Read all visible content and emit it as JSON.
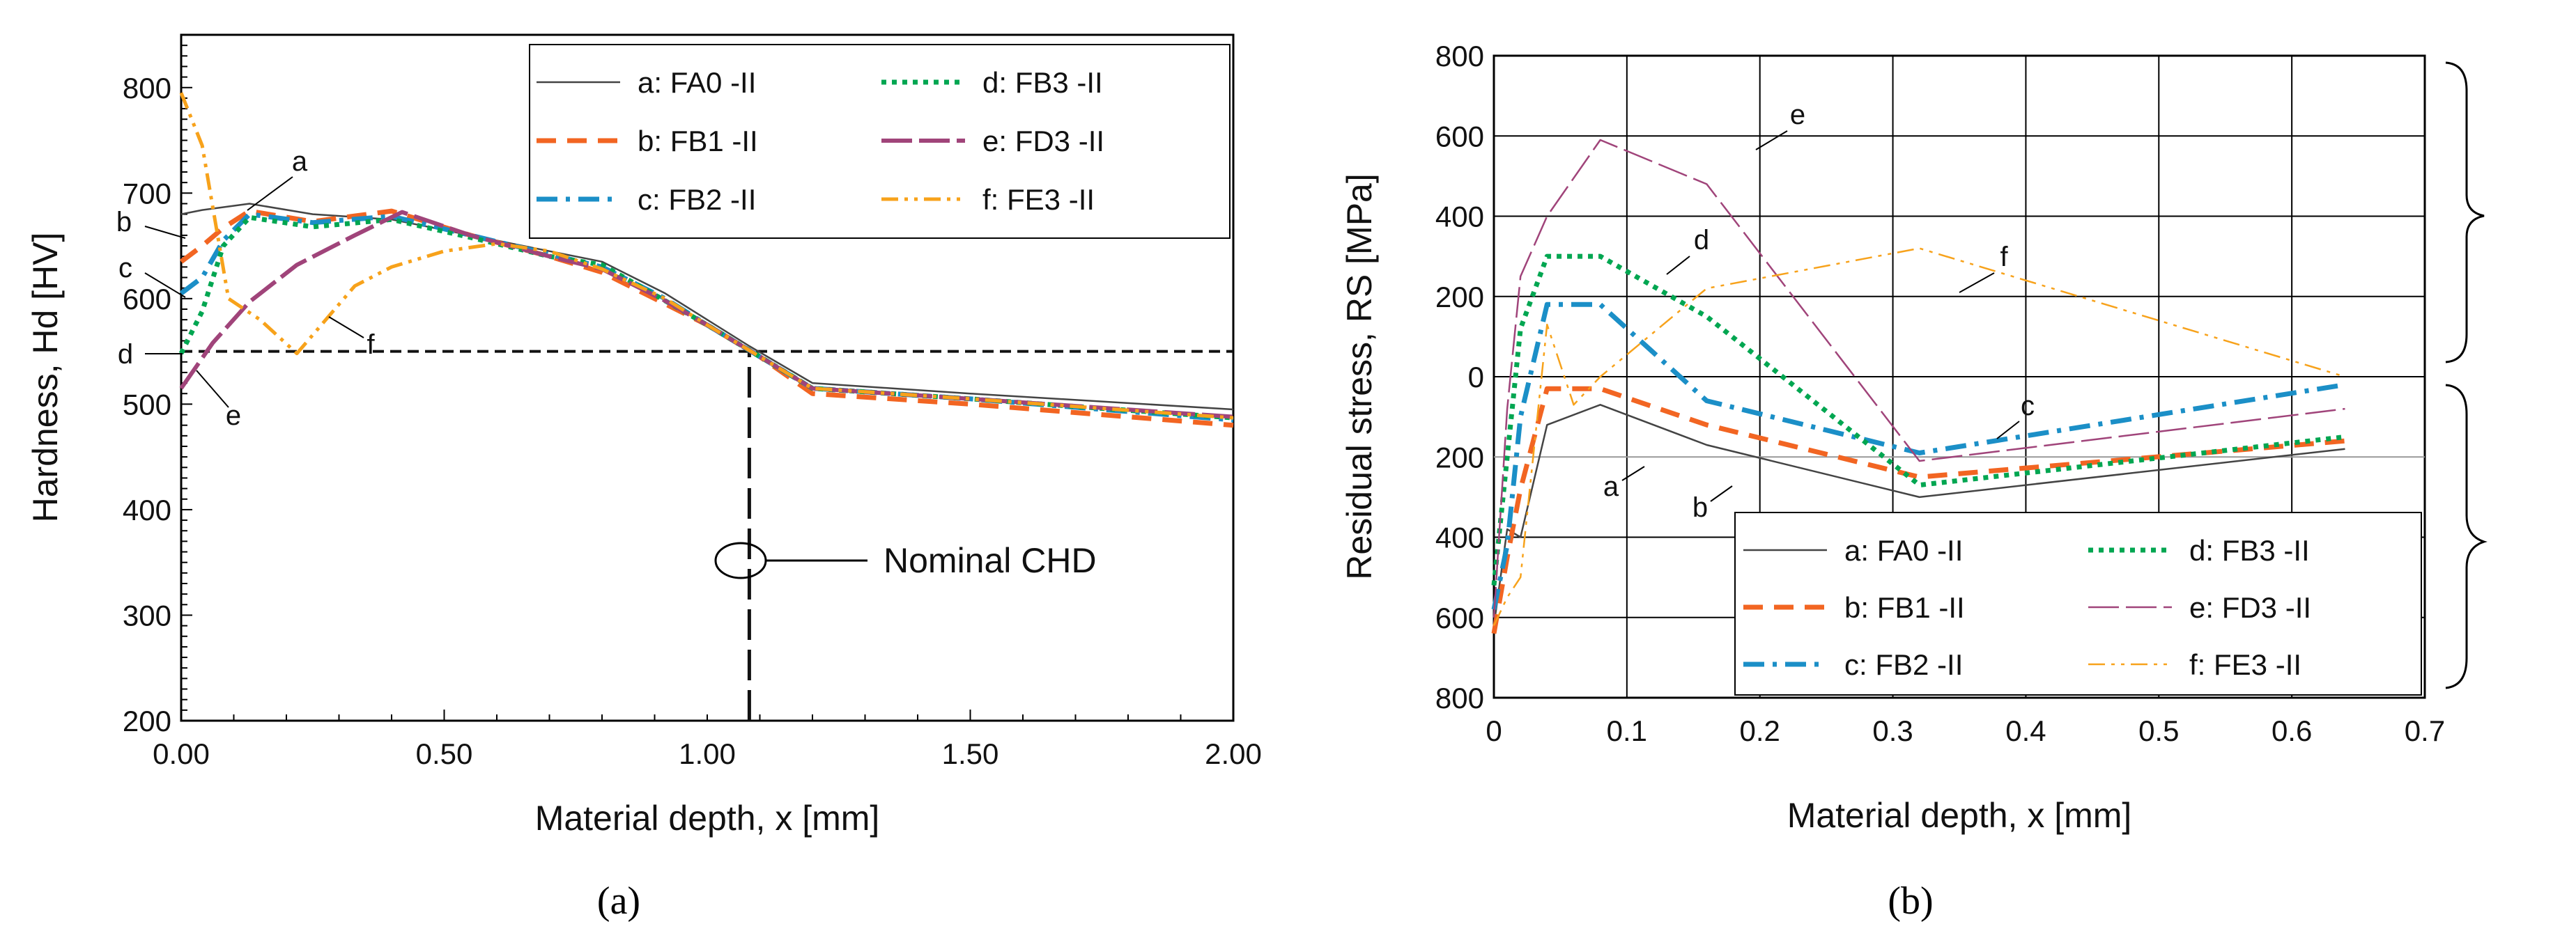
{
  "chart_data": [
    {
      "type": "line",
      "panel_label": "(a)",
      "xlabel": "Material depth, x [mm]",
      "ylabel": "Hardness, Hd [HV]",
      "xlim": [
        0,
        2
      ],
      "ylim": [
        200,
        850
      ],
      "xticks": [
        0,
        0.5,
        1,
        1.5,
        2
      ],
      "xtick_labels": [
        "0.00",
        "0.50",
        "1.00",
        "1.50",
        "2.00"
      ],
      "yticks": [
        200,
        300,
        400,
        500,
        600,
        700,
        800
      ],
      "ytick_labels": [
        "200",
        "300",
        "400",
        "500",
        "600",
        "700",
        "800"
      ],
      "grid": false,
      "legend_position": "top-right",
      "legend_columns": 2,
      "series": [
        {
          "name": "a: FA0 -II",
          "curve_label": "a",
          "color": "#444444",
          "style": "solid-thin",
          "points": [
            [
              0,
              680
            ],
            [
              0.04,
              684
            ],
            [
              0.13,
              690
            ],
            [
              0.25,
              680
            ],
            [
              0.4,
              675
            ],
            [
              0.55,
              660
            ],
            [
              0.7,
              645
            ],
            [
              0.8,
              635
            ],
            [
              0.92,
              605
            ],
            [
              1.0,
              580
            ],
            [
              1.08,
              555
            ],
            [
              1.2,
              520
            ],
            [
              1.5,
              510
            ],
            [
              2.0,
              495
            ]
          ]
        },
        {
          "name": "b: FB1 -II",
          "curve_label": "b",
          "color": "#f26522",
          "style": "dash",
          "points": [
            [
              0,
              635
            ],
            [
              0.04,
              650
            ],
            [
              0.08,
              667
            ],
            [
              0.13,
              683
            ],
            [
              0.25,
              673
            ],
            [
              0.4,
              683
            ],
            [
              0.55,
              660
            ],
            [
              0.7,
              640
            ],
            [
              0.8,
              625
            ],
            [
              0.92,
              595
            ],
            [
              1.0,
              575
            ],
            [
              1.1,
              545
            ],
            [
              1.2,
              510
            ],
            [
              1.5,
              500
            ],
            [
              2.0,
              480
            ]
          ]
        },
        {
          "name": "c: FB2 -II",
          "curve_label": "c",
          "color": "#1b8fc7",
          "style": "dashdot",
          "points": [
            [
              0,
              605
            ],
            [
              0.04,
              620
            ],
            [
              0.08,
              655
            ],
            [
              0.13,
              680
            ],
            [
              0.25,
              672
            ],
            [
              0.4,
              678
            ],
            [
              0.55,
              660
            ],
            [
              0.7,
              642
            ],
            [
              0.8,
              630
            ],
            [
              0.92,
              600
            ],
            [
              1.0,
              575
            ],
            [
              1.1,
              545
            ],
            [
              1.2,
              515
            ],
            [
              1.5,
              505
            ],
            [
              2.0,
              485
            ]
          ]
        },
        {
          "name": "d: FB3 -II",
          "curve_label": "d",
          "color": "#00a651",
          "style": "dot",
          "points": [
            [
              0,
              548
            ],
            [
              0.04,
              588
            ],
            [
              0.08,
              650
            ],
            [
              0.13,
              677
            ],
            [
              0.25,
              668
            ],
            [
              0.4,
              675
            ],
            [
              0.55,
              658
            ],
            [
              0.7,
              640
            ],
            [
              0.8,
              632
            ],
            [
              0.92,
              598
            ],
            [
              1.0,
              575
            ],
            [
              1.1,
              545
            ],
            [
              1.2,
              515
            ],
            [
              1.5,
              505
            ],
            [
              2.0,
              487
            ]
          ]
        },
        {
          "name": "e: FD3 -II",
          "curve_label": "e",
          "color": "#a0447a",
          "style": "longdash",
          "points": [
            [
              0,
              515
            ],
            [
              0.06,
              558
            ],
            [
              0.13,
              597
            ],
            [
              0.22,
              632
            ],
            [
              0.33,
              660
            ],
            [
              0.42,
              682
            ],
            [
              0.55,
              660
            ],
            [
              0.7,
              640
            ],
            [
              0.8,
              628
            ],
            [
              0.92,
              598
            ],
            [
              1.0,
              575
            ],
            [
              1.1,
              545
            ],
            [
              1.2,
              515
            ],
            [
              1.5,
              505
            ],
            [
              2.0,
              488
            ]
          ]
        },
        {
          "name": "f: FE3 -II",
          "curve_label": "f",
          "color": "#f7a21b",
          "style": "dashdotdot",
          "points": [
            [
              0,
              795
            ],
            [
              0.04,
              745
            ],
            [
              0.09,
              600
            ],
            [
              0.15,
              580
            ],
            [
              0.22,
              548
            ],
            [
              0.33,
              612
            ],
            [
              0.4,
              630
            ],
            [
              0.5,
              645
            ],
            [
              0.6,
              652
            ],
            [
              0.7,
              645
            ],
            [
              0.8,
              628
            ],
            [
              0.92,
              600
            ],
            [
              1.0,
              575
            ],
            [
              1.1,
              545
            ],
            [
              1.2,
              515
            ],
            [
              1.5,
              505
            ],
            [
              2.0,
              487
            ]
          ]
        }
      ],
      "reference_lines": [
        {
          "orientation": "horizontal",
          "value": 550,
          "style": "dash"
        },
        {
          "orientation": "vertical",
          "value": 1.08,
          "style": "longdash",
          "y_from": 200,
          "y_to": 550
        }
      ],
      "annotation_text": "Nominal CHD"
    },
    {
      "type": "line",
      "panel_label": "(b)",
      "xlabel": "Material depth, x [mm]",
      "ylabel": "Residual stress, RS [MPa]",
      "xlim": [
        0,
        0.7
      ],
      "ylim": [
        -800,
        800
      ],
      "xticks": [
        0,
        0.1,
        0.2,
        0.3,
        0.4,
        0.5,
        0.6,
        0.7
      ],
      "xtick_labels": [
        "0",
        "0.1",
        "0.2",
        "0.3",
        "0.4",
        "0.5",
        "0.6",
        "0.7"
      ],
      "yticks": [
        -800,
        -600,
        -400,
        -200,
        0,
        200,
        400,
        600,
        800
      ],
      "ytick_labels": [
        "800",
        "600",
        "400",
        "200",
        "0",
        "200",
        "400",
        "600",
        "800"
      ],
      "grid": true,
      "legend_position": "bottom-right",
      "legend_columns": 2,
      "series": [
        {
          "name": "a: FA0 -II",
          "curve_label": "a",
          "color": "#444444",
          "style": "solid-thin",
          "points": [
            [
              0,
              -620
            ],
            [
              0.01,
              -380
            ],
            [
              0.02,
              -400
            ],
            [
              0.04,
              -120
            ],
            [
              0.08,
              -70
            ],
            [
              0.16,
              -170
            ],
            [
              0.32,
              -300
            ],
            [
              0.64,
              -180
            ]
          ]
        },
        {
          "name": "b: FB1 -II",
          "curve_label": "b",
          "color": "#f26522",
          "style": "dash",
          "points": [
            [
              0,
              -640
            ],
            [
              0.01,
              -450
            ],
            [
              0.02,
              -280
            ],
            [
              0.04,
              -30
            ],
            [
              0.08,
              -30
            ],
            [
              0.16,
              -120
            ],
            [
              0.32,
              -250
            ],
            [
              0.64,
              -160
            ]
          ]
        },
        {
          "name": "c: FB2 -II",
          "curve_label": "c",
          "color": "#1b8fc7",
          "style": "dashdot",
          "points": [
            [
              0,
              -580
            ],
            [
              0.01,
              -420
            ],
            [
              0.02,
              -100
            ],
            [
              0.04,
              180
            ],
            [
              0.08,
              180
            ],
            [
              0.16,
              -60
            ],
            [
              0.32,
              -190
            ],
            [
              0.64,
              -20
            ]
          ]
        },
        {
          "name": "d: FB3 -II",
          "curve_label": "d",
          "color": "#00a651",
          "style": "dot",
          "points": [
            [
              0,
              -520
            ],
            [
              0.01,
              -200
            ],
            [
              0.02,
              120
            ],
            [
              0.04,
              300
            ],
            [
              0.08,
              300
            ],
            [
              0.16,
              150
            ],
            [
              0.32,
              -270
            ],
            [
              0.64,
              -150
            ]
          ]
        },
        {
          "name": "e: FD3 -II",
          "curve_label": "e",
          "color": "#a0447a",
          "style": "longdash-thin",
          "points": [
            [
              0,
              -600
            ],
            [
              0.01,
              -80
            ],
            [
              0.02,
              250
            ],
            [
              0.04,
              400
            ],
            [
              0.08,
              590
            ],
            [
              0.16,
              480
            ],
            [
              0.32,
              -210
            ],
            [
              0.64,
              -80
            ]
          ]
        },
        {
          "name": "f: FE3 -II",
          "curve_label": "f",
          "color": "#f7a21b",
          "style": "dashdotdot-thin",
          "points": [
            [
              0,
              -620
            ],
            [
              0.01,
              -550
            ],
            [
              0.02,
              -500
            ],
            [
              0.04,
              130
            ],
            [
              0.06,
              -70
            ],
            [
              0.08,
              0
            ],
            [
              0.16,
              220
            ],
            [
              0.32,
              320
            ],
            [
              0.64,
              0
            ]
          ]
        }
      ]
    }
  ]
}
